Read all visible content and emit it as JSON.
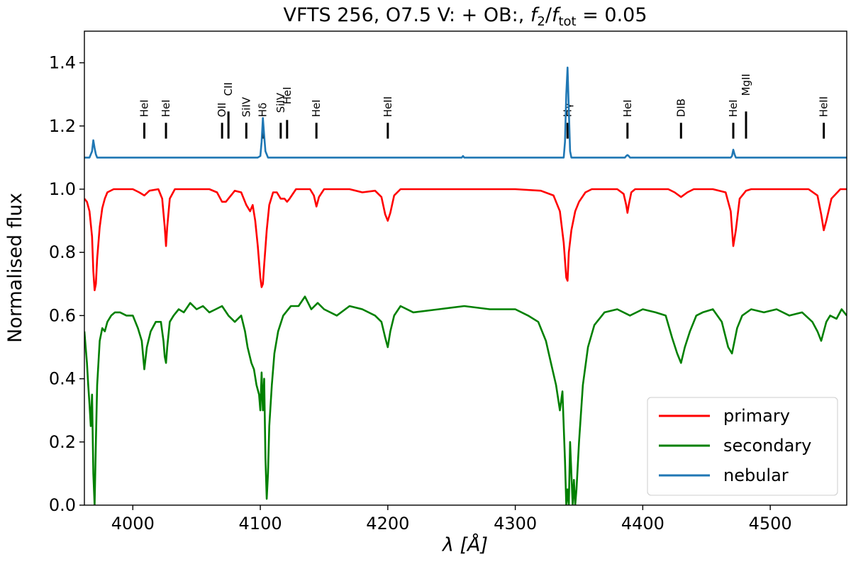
{
  "title": {
    "prefix": "VFTS 256, O7.5 V: + OB:, ",
    "f2": "f",
    "f2_sub": "2",
    "slash": "/",
    "ftot": "f",
    "ftot_sub": "tot",
    "suffix": " = 0.05"
  },
  "axes": {
    "xlabel_symbol": "λ",
    "xlabel_unit": " [Å]",
    "ylabel": "Normalised flux"
  },
  "chart_data": {
    "type": "line",
    "xlim": [
      3962,
      4560
    ],
    "ylim": [
      0.0,
      1.5
    ],
    "xticks": [
      4000,
      4100,
      4200,
      4300,
      4400,
      4500
    ],
    "xtick_labels": [
      "4000",
      "4100",
      "4200",
      "4300",
      "4400",
      "4500"
    ],
    "yticks": [
      0.0,
      0.2,
      0.4,
      0.6,
      0.8,
      1.0,
      1.2,
      1.4
    ],
    "ytick_labels": [
      "0.0",
      "0.2",
      "0.4",
      "0.6",
      "0.8",
      "1.0",
      "1.2",
      "1.4"
    ],
    "legend_position": "lower-right",
    "line_markers": [
      {
        "label": "HeI",
        "x": 4009
      },
      {
        "label": "HeI",
        "x": 4026
      },
      {
        "label": "OII",
        "x": 4070
      },
      {
        "label": "CII",
        "x": 4075
      },
      {
        "label": "SiIV",
        "x": 4089
      },
      {
        "label": "Hδ",
        "x": 4102
      },
      {
        "label": "SiIV",
        "x": 4116
      },
      {
        "label": "HeI",
        "x": 4121
      },
      {
        "label": "HeI",
        "x": 4144
      },
      {
        "label": "HeII",
        "x": 4200
      },
      {
        "label": "Hγ",
        "x": 4341
      },
      {
        "label": "HeI",
        "x": 4388
      },
      {
        "label": "DIB",
        "x": 4430
      },
      {
        "label": "HeI",
        "x": 4471
      },
      {
        "label": "MgII",
        "x": 4481
      },
      {
        "label": "HeII",
        "x": 4542
      }
    ],
    "series": [
      {
        "name": "primary",
        "color": "#ff0000",
        "x": [
          3962,
          3964,
          3966,
          3968,
          3969,
          3970,
          3971,
          3972,
          3974,
          3976,
          3978,
          3980,
          3985,
          4000,
          4005,
          4009,
          4013,
          4020,
          4023,
          4025,
          4026,
          4027,
          4029,
          4033,
          4040,
          4060,
          4066,
          4070,
          4073,
          4080,
          4085,
          4089,
          4092,
          4094,
          4096,
          4098,
          4100,
          4101,
          4102,
          4103,
          4105,
          4107,
          4110,
          4113,
          4116,
          4119,
          4121,
          4123,
          4128,
          4139,
          4142,
          4144,
          4146,
          4150,
          4160,
          4170,
          4180,
          4190,
          4195,
          4198,
          4200,
          4202,
          4205,
          4210,
          4220,
          4250,
          4300,
          4320,
          4330,
          4335,
          4338,
          4340,
          4341,
          4342,
          4344,
          4347,
          4350,
          4355,
          4360,
          4370,
          4380,
          4385,
          4387,
          4388,
          4389,
          4391,
          4394,
          4400,
          4420,
          4425,
          4430,
          4435,
          4440,
          4455,
          4465,
          4469,
          4471,
          4473,
          4476,
          4481,
          4485,
          4500,
          4530,
          4537,
          4540,
          4542,
          4544,
          4548,
          4555,
          4560
        ],
        "y": [
          0.97,
          0.96,
          0.93,
          0.85,
          0.74,
          0.68,
          0.7,
          0.78,
          0.88,
          0.94,
          0.97,
          0.99,
          1.0,
          1.0,
          0.99,
          0.98,
          0.995,
          1.0,
          0.97,
          0.88,
          0.82,
          0.88,
          0.97,
          1.0,
          1.0,
          1.0,
          0.99,
          0.96,
          0.96,
          0.995,
          0.99,
          0.95,
          0.93,
          0.95,
          0.9,
          0.82,
          0.72,
          0.69,
          0.7,
          0.76,
          0.87,
          0.95,
          0.99,
          0.99,
          0.97,
          0.97,
          0.96,
          0.97,
          1.0,
          1.0,
          0.98,
          0.945,
          0.975,
          1.0,
          1.0,
          1.0,
          0.99,
          0.995,
          0.975,
          0.92,
          0.9,
          0.925,
          0.98,
          1.0,
          1.0,
          1.0,
          1.0,
          0.995,
          0.98,
          0.93,
          0.83,
          0.72,
          0.71,
          0.8,
          0.87,
          0.93,
          0.96,
          0.99,
          1.0,
          1.0,
          1.0,
          0.985,
          0.95,
          0.925,
          0.95,
          0.99,
          1.0,
          1.0,
          1.0,
          0.99,
          0.975,
          0.99,
          1.0,
          1.0,
          0.99,
          0.93,
          0.82,
          0.87,
          0.97,
          0.995,
          1.0,
          1.0,
          1.0,
          0.98,
          0.92,
          0.87,
          0.9,
          0.97,
          1.0,
          1.0
        ]
      },
      {
        "name": "secondary",
        "color": "#008000",
        "x": [
          3962,
          3963,
          3964,
          3965,
          3966,
          3967,
          3968,
          3969,
          3970,
          3971,
          3972,
          3973,
          3974,
          3976,
          3978,
          3980,
          3983,
          3986,
          3990,
          3995,
          4000,
          4004,
          4007,
          4009,
          4011,
          4014,
          4018,
          4022,
          4024,
          4025,
          4026,
          4027,
          4029,
          4032,
          4036,
          4040,
          4045,
          4050,
          4055,
          4060,
          4065,
          4070,
          4075,
          4080,
          4085,
          4088,
          4090,
          4093,
          4095,
          4097,
          4099,
          4100,
          4101,
          4102,
          4103,
          4104,
          4105,
          4106,
          4107,
          4109,
          4111,
          4114,
          4118,
          4124,
          4130,
          4135,
          4140,
          4145,
          4150,
          4160,
          4170,
          4180,
          4190,
          4195,
          4198,
          4200,
          4202,
          4205,
          4210,
          4220,
          4240,
          4260,
          4280,
          4300,
          4310,
          4318,
          4324,
          4328,
          4332,
          4335,
          4337,
          4339,
          4340,
          4341,
          4342,
          4343,
          4344,
          4345,
          4346,
          4347,
          4348,
          4350,
          4353,
          4357,
          4362,
          4370,
          4380,
          4390,
          4400,
          4410,
          4418,
          4423,
          4427,
          4430,
          4433,
          4437,
          4442,
          4447,
          4455,
          4462,
          4467,
          4470,
          4472,
          4474,
          4478,
          4485,
          4495,
          4505,
          4515,
          4525,
          4533,
          4537,
          4540,
          4542,
          4544,
          4547,
          4552,
          4556,
          4560
        ],
        "y": [
          0.55,
          0.5,
          0.45,
          0.38,
          0.32,
          0.25,
          0.35,
          0.1,
          0.0,
          0.2,
          0.38,
          0.45,
          0.52,
          0.56,
          0.55,
          0.58,
          0.6,
          0.61,
          0.61,
          0.6,
          0.6,
          0.56,
          0.52,
          0.43,
          0.5,
          0.55,
          0.58,
          0.58,
          0.52,
          0.47,
          0.45,
          0.5,
          0.58,
          0.6,
          0.62,
          0.61,
          0.64,
          0.62,
          0.63,
          0.61,
          0.62,
          0.63,
          0.6,
          0.58,
          0.6,
          0.55,
          0.5,
          0.45,
          0.43,
          0.38,
          0.35,
          0.3,
          0.42,
          0.3,
          0.4,
          0.15,
          0.02,
          0.1,
          0.25,
          0.38,
          0.48,
          0.55,
          0.6,
          0.63,
          0.63,
          0.66,
          0.62,
          0.64,
          0.62,
          0.6,
          0.63,
          0.62,
          0.6,
          0.58,
          0.53,
          0.5,
          0.55,
          0.6,
          0.63,
          0.61,
          0.62,
          0.63,
          0.62,
          0.62,
          0.6,
          0.58,
          0.52,
          0.45,
          0.38,
          0.3,
          0.36,
          0.14,
          0.0,
          0.05,
          0.0,
          0.2,
          0.1,
          0.0,
          0.08,
          0.0,
          0.05,
          0.2,
          0.38,
          0.5,
          0.57,
          0.61,
          0.62,
          0.6,
          0.62,
          0.61,
          0.6,
          0.53,
          0.48,
          0.45,
          0.5,
          0.55,
          0.6,
          0.61,
          0.62,
          0.58,
          0.5,
          0.48,
          0.52,
          0.56,
          0.6,
          0.62,
          0.61,
          0.62,
          0.6,
          0.61,
          0.58,
          0.55,
          0.52,
          0.55,
          0.58,
          0.6,
          0.59,
          0.62,
          0.6
        ]
      },
      {
        "name": "nebular",
        "color": "#1f77b4",
        "x": [
          3962,
          3966,
          3968,
          3969,
          3970,
          3971,
          3972,
          3975,
          4098,
          4100,
          4101,
          4102,
          4103,
          4104,
          4106,
          4258,
          4259,
          4260,
          4261,
          4338,
          4339,
          4340,
          4341,
          4342,
          4343,
          4344,
          4386,
          4387,
          4388,
          4389,
          4390,
          4469,
          4470,
          4471,
          4472,
          4473,
          4474,
          4560
        ],
        "y": [
          1.1,
          1.1,
          1.12,
          1.155,
          1.13,
          1.11,
          1.1,
          1.1,
          1.1,
          1.105,
          1.15,
          1.225,
          1.17,
          1.12,
          1.1,
          1.1,
          1.105,
          1.1,
          1.1,
          1.1,
          1.15,
          1.3,
          1.385,
          1.25,
          1.12,
          1.1,
          1.1,
          1.105,
          1.108,
          1.105,
          1.1,
          1.1,
          1.105,
          1.125,
          1.11,
          1.1,
          1.1,
          1.1
        ]
      }
    ]
  }
}
